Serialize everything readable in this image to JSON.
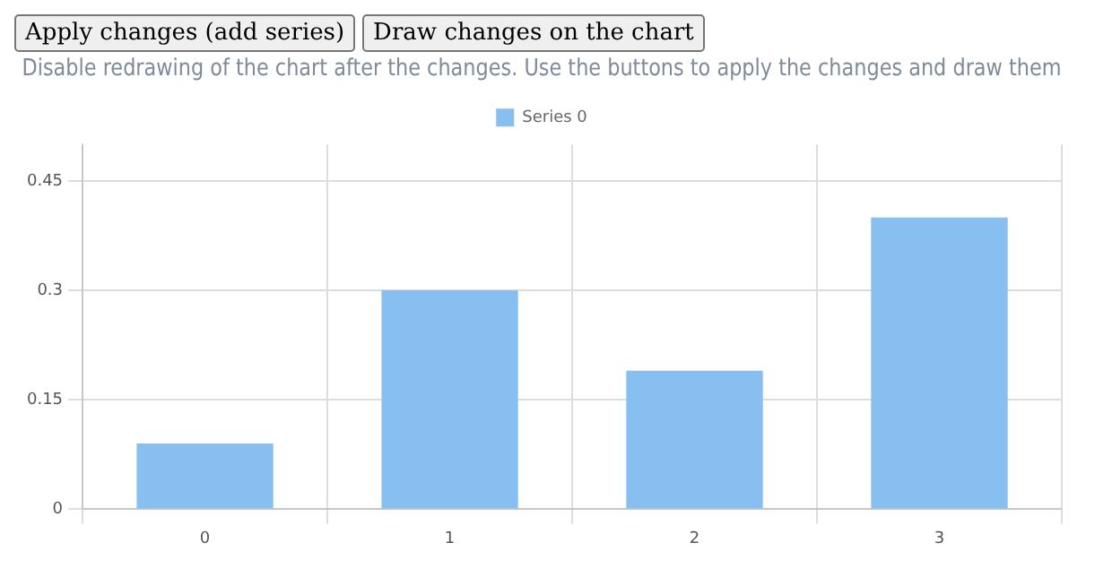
{
  "chart_data": {
    "type": "bar",
    "title": "Disable redrawing of the chart after the changes. Use the buttons to apply the changes and draw them",
    "annotations": [
      "Apply changes (add series)",
      "Draw changes on the chart"
    ],
    "categories": [
      "0",
      "1",
      "2",
      "3"
    ],
    "series": [
      {
        "name": "Series 0",
        "color": "#86bff0",
        "values": [
          0.09,
          0.3,
          0.19,
          0.4
        ]
      }
    ],
    "ylim": [
      0,
      0.5
    ],
    "yticks": [
      0,
      0.15,
      0.3,
      0.45
    ],
    "grid": true,
    "legend": "top"
  }
}
